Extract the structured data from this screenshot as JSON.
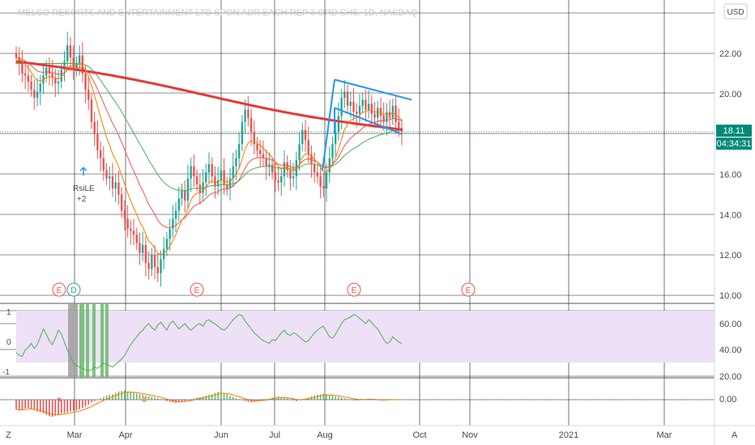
{
  "title": "MELCO RESORTS AND ENTERTAINMENT LTD SPON ADR EACH REP 3 ORD SHS, 1D, NASDAQ",
  "currency_button": "USD",
  "price_tag": "18.11",
  "countdown_tag": "04:34:31",
  "annotation": {
    "line1": "RsiLE",
    "line2": "+2"
  },
  "events": [
    "E",
    "D",
    "E",
    "E",
    "E"
  ],
  "scale_buttons": {
    "left": "Z",
    "right": "A"
  },
  "colors": {
    "up": "#26a69a",
    "down": "#ef5350",
    "ma_fast": "#f57c00",
    "ma_mid": "#ef5350",
    "ma_slow": "#4caf50",
    "ma_long": "#e53935",
    "channel": "#2196f3",
    "price_tag": "#00897b",
    "rsi_band": "#ede0f7",
    "rsi_line": "#4caf50"
  },
  "chart_data": [
    {
      "type": "candlestick",
      "title": "MELCO RESORTS AND ENTERTAINMENT LTD SPON ADR EACH REP 3 ORD SHS, 1D, NASDAQ",
      "x_ticks": [
        "Mar",
        "Apr",
        "Jun",
        "Jul",
        "Aug",
        "Oct",
        "Nov",
        "2021",
        "Mar"
      ],
      "y_ticks": [
        "22.00",
        "20.00",
        "16.00",
        "14.00",
        "12.00",
        "10.00"
      ],
      "ylim": [
        9.5,
        24
      ],
      "last_price": 18.11,
      "close_series": [
        21.8,
        21.5,
        21.0,
        20.9,
        20.6,
        20.2,
        19.8,
        20.1,
        20.5,
        20.9,
        21.3,
        21.0,
        20.8,
        20.5,
        20.6,
        21.2,
        21.6,
        22.4,
        21.8,
        21.2,
        21.5,
        21.9,
        21.0,
        20.2,
        19.7,
        18.6,
        18.0,
        17.2,
        16.8,
        16.2,
        15.8,
        15.9,
        15.3,
        15.6,
        15.0,
        14.2,
        13.8,
        13.3,
        13.2,
        13.0,
        12.6,
        12.1,
        12.5,
        11.6,
        11.3,
        12.0,
        11.4,
        11.1,
        11.8,
        12.3,
        12.8,
        13.3,
        13.8,
        14.2,
        14.8,
        15.2,
        14.7,
        15.8,
        16.4,
        15.9,
        15.5,
        15.1,
        15.6,
        16.1,
        16.5,
        15.9,
        15.4,
        15.7,
        16.2,
        15.5,
        15.3,
        15.8,
        16.4,
        16.8,
        17.5,
        18.6,
        19.2,
        18.8,
        18.1,
        17.5,
        17.2,
        17.0,
        16.8,
        16.4,
        16.5,
        16.1,
        15.7,
        15.6,
        15.9,
        16.6,
        16.2,
        15.8,
        15.9,
        16.7,
        17.5,
        18.2,
        17.7,
        17.0,
        16.5,
        16.1,
        15.9,
        15.4,
        15.3,
        16.1,
        16.8,
        17.5,
        18.1,
        18.9,
        19.8,
        20.1,
        19.4,
        19.6,
        19.1,
        19.0,
        19.4,
        19.7,
        19.2,
        19.5,
        19.0,
        18.8,
        19.3,
        18.9,
        18.6,
        19.1,
        18.8,
        19.4,
        18.6,
        18.3,
        18.11
      ],
      "rise_marker": {
        "label": "RsiLE",
        "value": "+2"
      }
    },
    {
      "type": "line",
      "name": "RSI",
      "y_ticks": [
        "60.00",
        "40.00",
        "20.00"
      ],
      "left_ticks": [
        "1",
        "0",
        "-1"
      ],
      "band": [
        30,
        70
      ],
      "values": [
        38,
        36,
        35,
        40,
        42,
        45,
        41,
        44,
        50,
        56,
        52,
        47,
        44,
        49,
        55,
        52,
        46,
        40,
        35,
        30,
        28,
        27,
        26,
        25,
        24,
        25,
        27,
        26,
        28,
        30,
        29,
        28,
        27,
        29,
        31,
        33,
        36,
        40,
        44,
        47,
        50,
        53,
        55,
        58,
        60,
        57,
        55,
        59,
        61,
        58,
        55,
        60,
        62,
        59,
        56,
        58,
        60,
        57,
        55,
        57,
        59,
        60,
        58,
        62,
        63,
        61,
        60,
        58,
        56,
        55,
        57,
        60,
        63,
        65,
        67,
        66,
        62,
        59,
        56,
        53,
        51,
        49,
        47,
        46,
        45,
        48,
        47,
        50,
        53,
        55,
        52,
        51,
        53,
        52,
        50,
        48,
        46,
        47,
        50,
        53,
        55,
        57,
        58,
        54,
        50,
        49,
        52,
        56,
        60,
        63,
        64,
        65,
        67,
        66,
        64,
        62,
        60,
        63,
        61,
        58,
        56,
        52,
        48,
        45,
        46,
        50,
        48,
        46,
        45
      ],
      "ylim": [
        18,
        74
      ]
    },
    {
      "type": "bar",
      "name": "Histogram",
      "y_ticks": [
        "0.00"
      ],
      "values": [
        -0.35,
        -0.4,
        -0.38,
        -0.32,
        -0.3,
        -0.34,
        -0.38,
        -0.42,
        -0.45,
        -0.5,
        -0.55,
        -0.6,
        -0.62,
        -0.58,
        -0.55,
        -0.5,
        -0.48,
        -0.45,
        -0.42,
        -0.4,
        -0.38,
        -0.35,
        -0.3,
        -0.25,
        -0.18,
        -0.1,
        -0.05,
        0.0,
        0.05,
        0.1,
        0.15,
        0.18,
        0.2,
        0.25,
        0.3,
        0.32,
        0.35,
        0.3,
        0.28,
        0.25,
        0.22,
        0.2,
        0.18,
        0.15,
        0.12,
        0.1,
        0.08,
        0.05,
        0.02,
        -0.02,
        -0.05,
        -0.08,
        -0.1,
        -0.12,
        -0.1,
        -0.08,
        -0.05,
        -0.02,
        0.02,
        0.05,
        0.08,
        0.1,
        0.12,
        0.15,
        0.18,
        0.2,
        0.25,
        0.28,
        0.3,
        0.25,
        0.2,
        0.15,
        0.1,
        0.05,
        0.02,
        -0.02,
        -0.05,
        -0.08,
        -0.1,
        -0.08,
        -0.05,
        -0.02,
        0.0,
        0.02,
        0.05,
        0.08,
        0.1,
        0.12,
        0.1,
        0.08,
        0.05,
        0.02,
        -0.02,
        -0.05,
        -0.02,
        0.02,
        0.05,
        0.08,
        0.12,
        0.15,
        0.18,
        0.2,
        0.22,
        0.2,
        0.18,
        0.15,
        0.12,
        0.1,
        0.08,
        0.05,
        0.03,
        0.0,
        -0.02,
        -0.03,
        -0.02,
        0.0,
        0.02,
        0.03,
        0.02,
        0.0,
        -0.02,
        -0.03,
        -0.02,
        0.0,
        0.02,
        0.01,
        0.0,
        -0.01,
        0.0
      ],
      "ylim": [
        -0.8,
        0.5
      ]
    }
  ]
}
